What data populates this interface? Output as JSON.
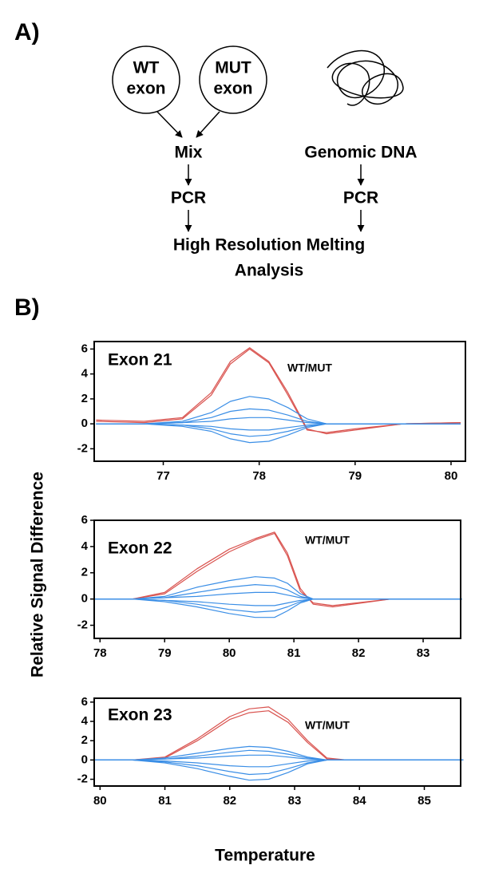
{
  "panel_a": {
    "label": "A)",
    "wt_circle": [
      "WT",
      "exon"
    ],
    "mut_circle": [
      "MUT",
      "exon"
    ],
    "mix": "Mix",
    "genomic": "Genomic DNA",
    "pcr_left": "PCR",
    "pcr_right": "PCR",
    "result": [
      "High Resolution Melting",
      "Analysis"
    ]
  },
  "panel_b": {
    "label": "B)",
    "ylabel": "Relative Signal Difference",
    "xlabel": "Temperature"
  },
  "chart_data": [
    {
      "type": "line",
      "title": "Exon 21",
      "annotation": "WT/MUT",
      "x": [
        76.3,
        76.8,
        77.2,
        77.5,
        77.7,
        77.9,
        78.1,
        78.3,
        78.5,
        78.7,
        79.0,
        79.5,
        80.1
      ],
      "xlim": [
        76.28,
        80.15
      ],
      "xticks": [
        77,
        78,
        79,
        80
      ],
      "ylim": [
        -3,
        6.6
      ],
      "yticks": [
        6,
        4,
        2,
        0,
        -2
      ],
      "series": [
        {
          "color": "#d9534f",
          "values": [
            0.3,
            0.2,
            0.5,
            2.5,
            5,
            6.1,
            5,
            2.5,
            -0.4,
            -0.8,
            -0.5,
            0,
            0.1
          ]
        },
        {
          "color": "#d9534f",
          "values": [
            0.2,
            0.1,
            0.4,
            2.3,
            4.8,
            6.0,
            4.9,
            2.3,
            -0.5,
            -0.7,
            -0.4,
            0,
            0.1
          ]
        },
        {
          "color": "#3a8ee6",
          "values": [
            0,
            0,
            0.2,
            0.9,
            1.8,
            2.2,
            2.0,
            1.3,
            0.4,
            0,
            0,
            0,
            0
          ]
        },
        {
          "color": "#3a8ee6",
          "values": [
            0,
            0,
            0.1,
            0.5,
            1.0,
            1.2,
            1.1,
            0.7,
            0.2,
            0,
            0,
            0,
            0
          ]
        },
        {
          "color": "#3a8ee6",
          "values": [
            0,
            0,
            0.1,
            0.2,
            0.4,
            0.5,
            0.5,
            0.3,
            0.1,
            0,
            0,
            0,
            0
          ]
        },
        {
          "color": "#3a8ee6",
          "values": [
            0,
            0,
            -0.1,
            -0.2,
            -0.4,
            -0.5,
            -0.5,
            -0.3,
            -0.1,
            0,
            0,
            0,
            0
          ]
        },
        {
          "color": "#3a8ee6",
          "values": [
            0,
            0,
            -0.1,
            -0.4,
            -0.8,
            -1,
            -0.9,
            -0.6,
            -0.2,
            0,
            0,
            0,
            0
          ]
        },
        {
          "color": "#3a8ee6",
          "values": [
            0,
            0,
            -0.2,
            -0.6,
            -1.2,
            -1.5,
            -1.4,
            -0.9,
            -0.3,
            0,
            0,
            0,
            0
          ]
        }
      ]
    },
    {
      "type": "line",
      "title": "Exon 22",
      "annotation": "WT/MUT",
      "x": [
        77.9,
        78.5,
        79.0,
        79.5,
        80.0,
        80.4,
        80.7,
        80.9,
        81.1,
        81.3,
        81.6,
        82.5,
        83.6
      ],
      "xlim": [
        77.91,
        83.58
      ],
      "xticks": [
        78,
        79,
        80,
        81,
        82,
        83
      ],
      "ylim": [
        -3,
        6
      ],
      "yticks": [
        6,
        4,
        2,
        0,
        -2
      ],
      "series": [
        {
          "color": "#d9534f",
          "values": [
            0,
            0,
            0.5,
            2.3,
            3.8,
            4.6,
            5.1,
            3.5,
            0.8,
            -0.4,
            -0.6,
            0,
            0
          ]
        },
        {
          "color": "#d9534f",
          "values": [
            0,
            0,
            0.4,
            2.1,
            3.6,
            4.5,
            5.0,
            3.3,
            0.6,
            -0.3,
            -0.5,
            0,
            0
          ]
        },
        {
          "color": "#3a8ee6",
          "values": [
            0,
            0,
            0.2,
            0.9,
            1.4,
            1.7,
            1.6,
            1.2,
            0.4,
            0,
            0,
            0,
            0
          ]
        },
        {
          "color": "#3a8ee6",
          "values": [
            0,
            0,
            0.1,
            0.5,
            0.9,
            1.1,
            1.0,
            0.7,
            0.2,
            0,
            0,
            0,
            0
          ]
        },
        {
          "color": "#3a8ee6",
          "values": [
            0,
            0,
            0.1,
            0.2,
            0.4,
            0.5,
            0.5,
            0.3,
            0.1,
            0,
            0,
            0,
            0
          ]
        },
        {
          "color": "#3a8ee6",
          "values": [
            0,
            0,
            -0.1,
            -0.2,
            -0.4,
            -0.5,
            -0.5,
            -0.3,
            -0.1,
            0,
            0,
            0,
            0
          ]
        },
        {
          "color": "#3a8ee6",
          "values": [
            0,
            0,
            -0.1,
            -0.4,
            -0.8,
            -1,
            -0.9,
            -0.6,
            -0.2,
            0,
            0,
            0,
            0
          ]
        },
        {
          "color": "#3a8ee6",
          "values": [
            0,
            0,
            -0.2,
            -0.6,
            -1.1,
            -1.4,
            -1.4,
            -0.9,
            -0.3,
            0,
            0,
            0,
            0
          ]
        }
      ]
    },
    {
      "type": "line",
      "title": "Exon 23",
      "annotation": "WT/MUT",
      "x": [
        79.9,
        80.5,
        81.0,
        81.5,
        82.0,
        82.3,
        82.6,
        82.9,
        83.2,
        83.5,
        83.8,
        84.5,
        85.6
      ],
      "xlim": [
        79.91,
        85.56
      ],
      "xticks": [
        80,
        81,
        82,
        83,
        84,
        85
      ],
      "ylim": [
        -2.7,
        6.4
      ],
      "yticks": [
        6,
        4,
        2,
        0,
        -2
      ],
      "series": [
        {
          "color": "#d9534f",
          "values": [
            0,
            0,
            0.3,
            2.2,
            4.5,
            5.3,
            5.5,
            4.2,
            2.0,
            0.2,
            0,
            0,
            0
          ]
        },
        {
          "color": "#d9534f",
          "values": [
            0,
            0,
            0.2,
            2.0,
            4.2,
            4.9,
            5.1,
            3.9,
            1.8,
            0.1,
            0,
            0,
            0
          ]
        },
        {
          "color": "#3a8ee6",
          "values": [
            0,
            0,
            0.2,
            0.7,
            1.2,
            1.4,
            1.3,
            0.9,
            0.3,
            0,
            0,
            0,
            0
          ]
        },
        {
          "color": "#3a8ee6",
          "values": [
            0,
            0,
            0.1,
            0.4,
            0.8,
            1.0,
            0.9,
            0.6,
            0.2,
            0,
            0,
            0,
            0
          ]
        },
        {
          "color": "#3a8ee6",
          "values": [
            0,
            0,
            0.1,
            0.2,
            0.4,
            0.5,
            0.5,
            0.3,
            0.1,
            0,
            0,
            0,
            0
          ]
        },
        {
          "color": "#3a8ee6",
          "values": [
            0,
            0,
            -0.1,
            -0.3,
            -0.6,
            -0.7,
            -0.7,
            -0.4,
            -0.1,
            0,
            0,
            0,
            0
          ]
        },
        {
          "color": "#3a8ee6",
          "values": [
            0,
            0,
            -0.2,
            -0.6,
            -1.2,
            -1.5,
            -1.4,
            -0.9,
            -0.3,
            0,
            0,
            0,
            0
          ]
        },
        {
          "color": "#3a8ee6",
          "values": [
            0,
            0,
            -0.3,
            -0.9,
            -1.7,
            -2.1,
            -2.0,
            -1.3,
            -0.4,
            0,
            0,
            0,
            0
          ]
        }
      ]
    }
  ]
}
